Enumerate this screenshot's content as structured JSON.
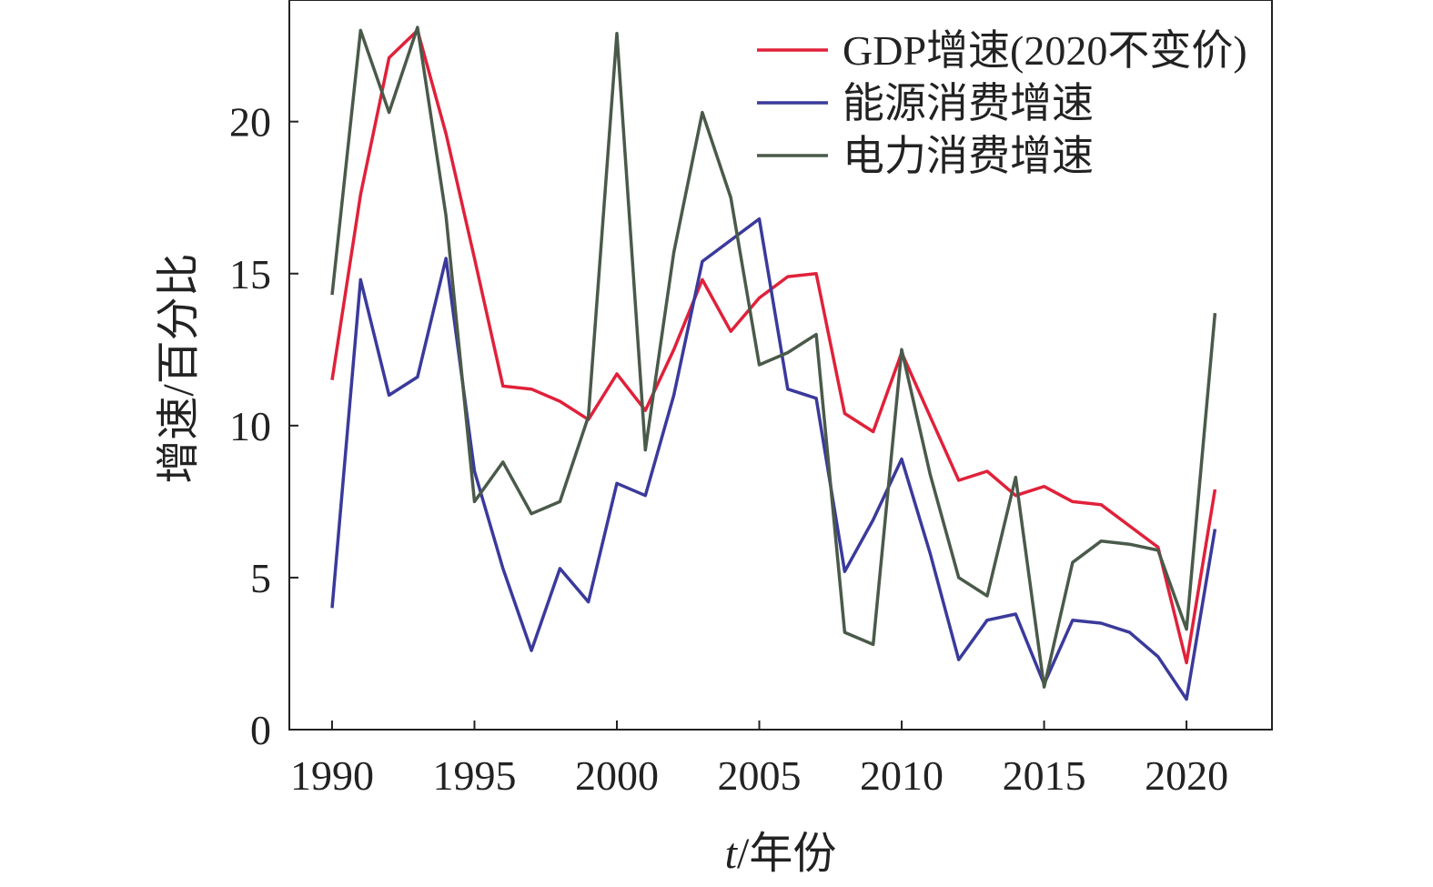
{
  "chart_data": {
    "type": "line",
    "title": "",
    "xlabel": "t/年份",
    "ylabel": "增速/百分比",
    "xlim": [
      1988.5,
      2023
    ],
    "ylim": [
      0,
      24
    ],
    "xticks": [
      1990,
      1995,
      2000,
      2005,
      2010,
      2015,
      2020
    ],
    "yticks": [
      0,
      5,
      10,
      15,
      20
    ],
    "grid": false,
    "legend_position": "top-right",
    "x": [
      1990,
      1991,
      1992,
      1993,
      1994,
      1995,
      1996,
      1997,
      1998,
      1999,
      2000,
      2001,
      2002,
      2003,
      2004,
      2005,
      2006,
      2007,
      2008,
      2009,
      2010,
      2011,
      2012,
      2013,
      2014,
      2015,
      2016,
      2017,
      2018,
      2019,
      2020,
      2021
    ],
    "series": [
      {
        "name": "GDP增速(2020不变价)",
        "color": "#e0213a",
        "values": [
          11.5,
          17.6,
          22.1,
          23.0,
          19.6,
          15.5,
          11.3,
          11.2,
          10.8,
          10.2,
          11.7,
          10.5,
          12.5,
          14.8,
          13.1,
          14.2,
          14.9,
          15.0,
          10.4,
          9.8,
          12.4,
          10.3,
          8.2,
          8.5,
          7.7,
          8.0,
          7.5,
          7.4,
          6.7,
          6.0,
          2.2,
          7.9
        ]
      },
      {
        "name": "能源消费增速",
        "color": "#3a3a9c",
        "values": [
          4.0,
          14.8,
          11.0,
          11.6,
          15.5,
          8.5,
          5.3,
          2.6,
          5.3,
          4.2,
          8.1,
          7.7,
          11.0,
          15.4,
          16.1,
          16.8,
          11.2,
          10.9,
          5.2,
          6.9,
          8.9,
          5.8,
          2.3,
          3.6,
          3.8,
          1.5,
          3.6,
          3.5,
          3.2,
          2.4,
          1.0,
          6.6
        ]
      },
      {
        "name": "电力消费增速",
        "color": "#4a5a4a",
        "values": [
          14.3,
          23.0,
          20.3,
          23.1,
          16.9,
          7.5,
          8.8,
          7.1,
          7.5,
          10.3,
          22.9,
          9.2,
          15.7,
          20.3,
          17.5,
          12.0,
          12.4,
          13.0,
          3.2,
          2.8,
          12.5,
          8.4,
          5.0,
          4.4,
          8.3,
          1.4,
          5.5,
          6.2,
          6.1,
          5.9,
          3.3,
          13.7
        ]
      }
    ]
  }
}
